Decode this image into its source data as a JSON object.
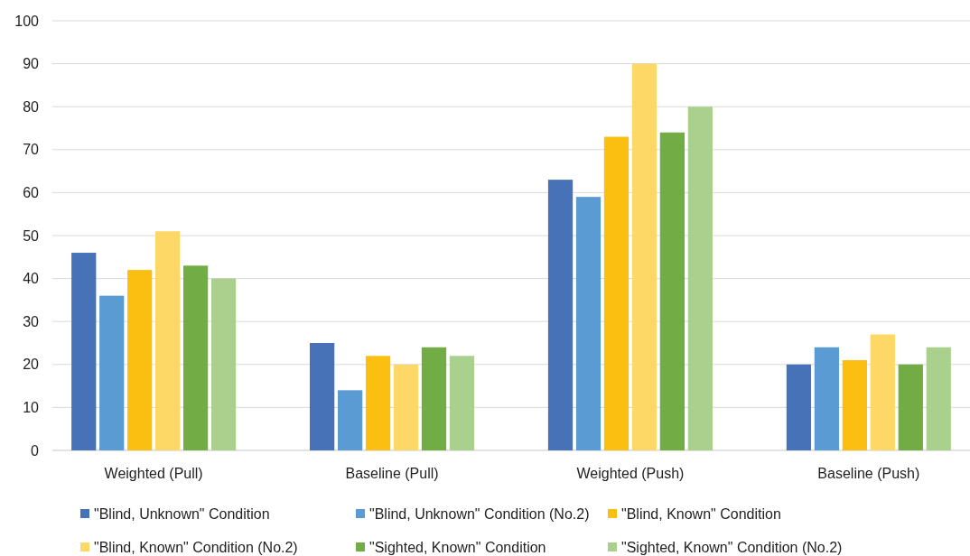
{
  "chart_data": {
    "type": "bar",
    "categories": [
      "Weighted (Pull)",
      "Baseline (Pull)",
      "Weighted (Push)",
      "Baseline (Push)"
    ],
    "series": [
      {
        "name": "\"Blind, Unknown\" Condition",
        "color": "#4872b8",
        "values": [
          46,
          25,
          63,
          20
        ]
      },
      {
        "name": "\"Blind, Unknown\" Condition (No.2)",
        "color": "#5b9bd3",
        "values": [
          36,
          14,
          59,
          24
        ]
      },
      {
        "name": "\"Blind, Known\" Condition",
        "color": "#fbbf12",
        "values": [
          42,
          22,
          73,
          21
        ]
      },
      {
        "name": "\"Blind, Known\" Condition (No.2)",
        "color": "#fdd866",
        "values": [
          51,
          20,
          90,
          27
        ]
      },
      {
        "name": "\"Sighted, Known\" Condition",
        "color": "#71ac45",
        "values": [
          43,
          24,
          74,
          20
        ]
      },
      {
        "name": "\"Sighted, Known\" Condition (No.2)",
        "color": "#a9d08c",
        "values": [
          40,
          22,
          80,
          24
        ]
      }
    ],
    "ylim": [
      0,
      100
    ],
    "yticks": [
      0,
      10,
      20,
      30,
      40,
      50,
      60,
      70,
      80,
      90,
      100
    ],
    "grid": "y",
    "legend": "bottom"
  }
}
